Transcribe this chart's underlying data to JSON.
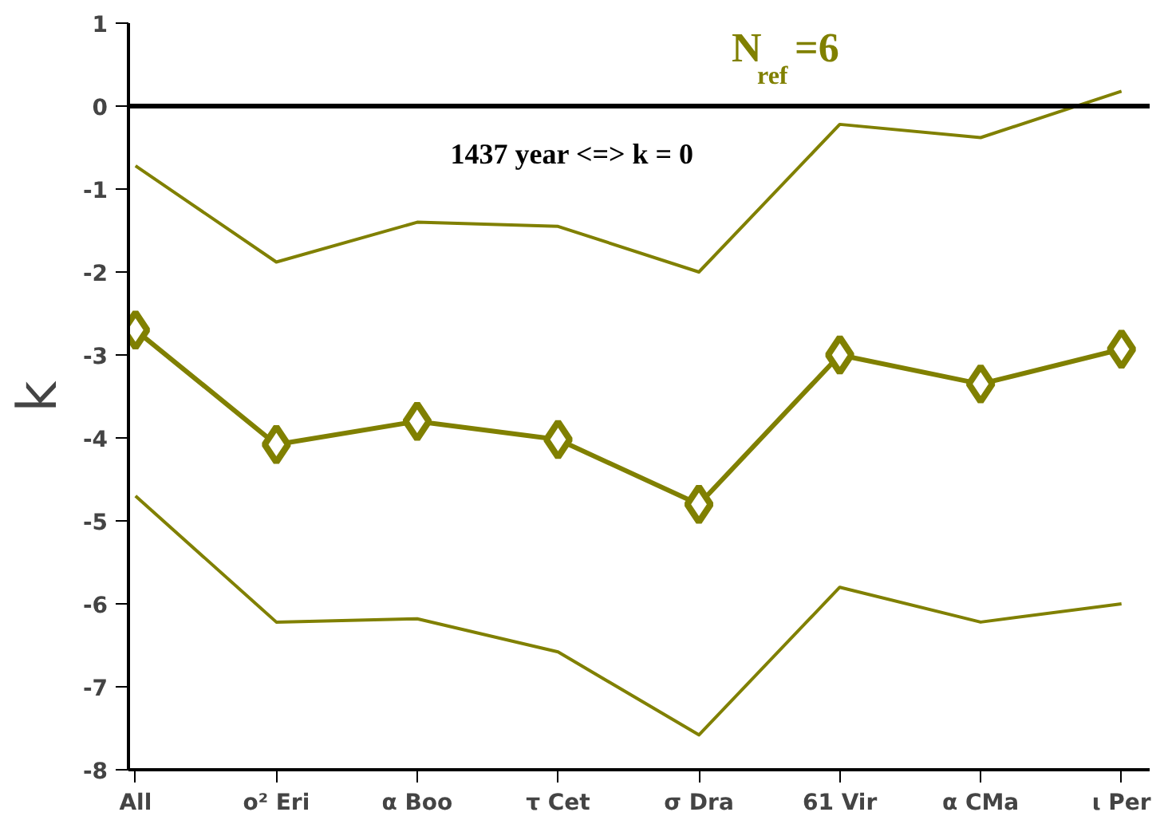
{
  "chart_data": {
    "type": "line",
    "title": "N$_{ref}$=6",
    "ylabel": "k",
    "categories": [
      "All",
      "o² Eri",
      "α Boo",
      "τ Cet",
      "σ Dra",
      "61 Vir",
      "α CMa",
      "ι Per"
    ],
    "series": [
      {
        "color": "#808000",
        "values": [
          -0.72,
          -1.88,
          -1.4,
          -1.45,
          -2.0,
          -0.22,
          -0.38,
          0.18
        ],
        "marker": "none"
      },
      {
        "color": "#808000",
        "values": [
          -2.7,
          -4.08,
          -3.8,
          -4.02,
          -4.8,
          -3.0,
          -3.35,
          -2.93
        ],
        "marker": "diamond"
      },
      {
        "color": "#808000",
        "values": [
          -4.7,
          -6.22,
          -6.18,
          -6.58,
          -7.58,
          -5.8,
          -6.22,
          -6.0
        ],
        "marker": "none"
      }
    ],
    "ylim": [
      -8,
      1
    ],
    "yticks": [
      -8,
      -7,
      -6,
      -5,
      -4,
      -3,
      -2,
      -1,
      0,
      1
    ],
    "ref_lines": [
      {
        "axis": "y",
        "value": 0,
        "label": "1437 year <=> k = 0",
        "color": "#000000"
      }
    ],
    "grid": false
  }
}
